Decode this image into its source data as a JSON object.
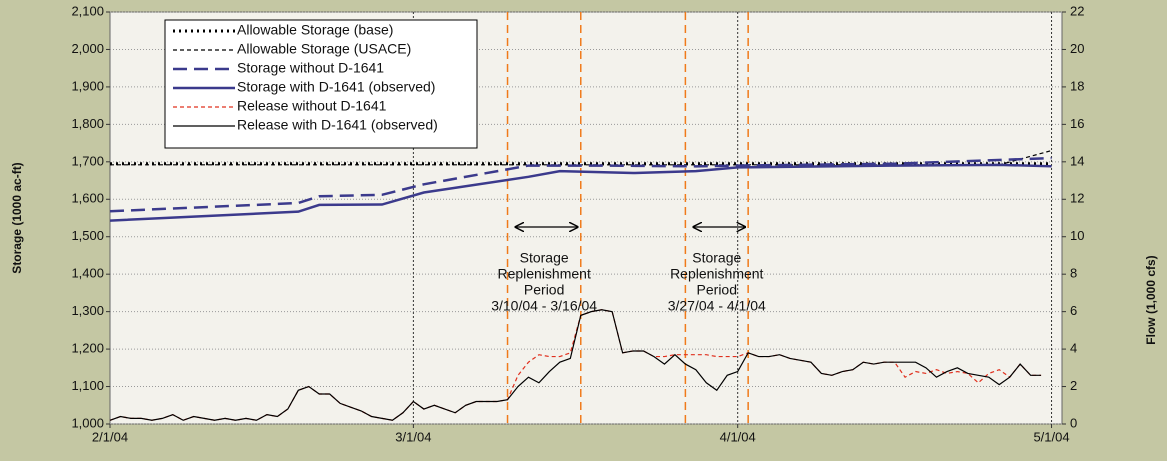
{
  "chart_data": {
    "type": "line",
    "ylabel": "Storage (1000 ac-ft)",
    "y2label": "Flow (1,000 cfs)",
    "xlim": [
      0,
      91
    ],
    "xticks": [
      {
        "value": 0,
        "label": "2/1/04"
      },
      {
        "value": 29,
        "label": "3/1/04"
      },
      {
        "value": 60,
        "label": "4/1/04"
      },
      {
        "value": 90,
        "label": "5/1/04"
      }
    ],
    "ylim": [
      1000,
      2100
    ],
    "yticks": [
      {
        "value": 1000,
        "label": "1,000"
      },
      {
        "value": 1100,
        "label": "1,100"
      },
      {
        "value": 1200,
        "label": "1,200"
      },
      {
        "value": 1300,
        "label": "1,300"
      },
      {
        "value": 1400,
        "label": "1,400"
      },
      {
        "value": 1500,
        "label": "1,500"
      },
      {
        "value": 1600,
        "label": "1,600"
      },
      {
        "value": 1700,
        "label": "1,700"
      },
      {
        "value": 1800,
        "label": "1,800"
      },
      {
        "value": 1900,
        "label": "1,900"
      },
      {
        "value": 2000,
        "label": "2,000"
      },
      {
        "value": 2100,
        "label": "2,100"
      }
    ],
    "y2lim": [
      0,
      22
    ],
    "y2ticks": [
      0,
      2,
      4,
      6,
      8,
      10,
      12,
      14,
      16,
      18,
      20,
      22
    ],
    "grid": true,
    "legend": "upper left",
    "vertical_lines": [
      38,
      45,
      55,
      61
    ],
    "annotations": [
      {
        "lines": [
          "Storage",
          "Replenishment",
          "Period",
          "3/10/04 - 3/16/04"
        ]
      },
      {
        "lines": [
          "Storage",
          "Replenishment",
          "Period",
          "3/27/04 - 4/1/04"
        ]
      }
    ],
    "x": [
      0,
      1,
      2,
      3,
      4,
      5,
      6,
      7,
      8,
      9,
      10,
      11,
      12,
      13,
      14,
      15,
      16,
      17,
      18,
      19,
      20,
      21,
      22,
      23,
      24,
      25,
      26,
      27,
      28,
      29,
      30,
      31,
      32,
      33,
      34,
      35,
      36,
      37,
      38,
      39,
      40,
      41,
      42,
      43,
      44,
      45,
      46,
      47,
      48,
      49,
      50,
      51,
      52,
      53,
      54,
      55,
      56,
      57,
      58,
      59,
      60,
      61,
      62,
      63,
      64,
      65,
      66,
      67,
      68,
      69,
      70,
      71,
      72,
      73,
      74,
      75,
      76,
      77,
      78,
      79,
      80,
      81,
      82,
      83,
      84,
      85,
      86,
      87,
      88,
      89
    ],
    "series": [
      {
        "name": "Allowable Storage (base)",
        "color": "#000000",
        "style": "dotted",
        "x": [
          0,
          90
        ],
        "values": [
          1695,
          1695
        ]
      },
      {
        "name": "Allowable Storage (USACE)",
        "color": "#000000",
        "style": "thin-dashed",
        "x": [
          0,
          85,
          90
        ],
        "values": [
          1692,
          1692,
          1730
        ]
      },
      {
        "name": "Storage without D-1641",
        "color": "#3b3a8c",
        "style": "dashed",
        "x": [
          0,
          18,
          20,
          26,
          30,
          40,
          47,
          56,
          60,
          75,
          90
        ],
        "values": [
          1568,
          1590,
          1608,
          1612,
          1640,
          1690,
          1690,
          1688,
          1690,
          1695,
          1710
        ]
      },
      {
        "name": "Storage with D-1641 (observed)",
        "color": "#3b3a8c",
        "style": "solid",
        "x": [
          0,
          18,
          20,
          26,
          30,
          40,
          43,
          50,
          56,
          60,
          75,
          85,
          90
        ],
        "values": [
          1543,
          1567,
          1585,
          1586,
          1618,
          1660,
          1675,
          1670,
          1675,
          1685,
          1690,
          1692,
          1688
        ]
      },
      {
        "name": "Release without D-1641",
        "color": "#e0301e",
        "style": "thin-dashed",
        "axis": "y2",
        "values": [
          0.2,
          0.4,
          0.3,
          0.3,
          0.2,
          0.3,
          0.5,
          0.2,
          0.4,
          0.3,
          0.2,
          0.3,
          0.2,
          0.3,
          0.2,
          0.5,
          0.4,
          0.8,
          1.8,
          2.0,
          1.6,
          1.6,
          1.1,
          0.9,
          0.7,
          0.4,
          0.3,
          0.2,
          0.6,
          1.2,
          0.8,
          1.0,
          0.8,
          0.6,
          1.0,
          1.2,
          1.2,
          1.2,
          1.3,
          2.6,
          3.3,
          3.7,
          3.6,
          3.6,
          3.8,
          5.8,
          6.0,
          6.1,
          6.0,
          3.8,
          3.9,
          3.9,
          3.6,
          3.6,
          3.7,
          3.7,
          3.7,
          3.7,
          3.6,
          3.6,
          3.6,
          3.8,
          3.6,
          3.6,
          3.7,
          3.5,
          3.4,
          3.3,
          2.7,
          2.6,
          2.8,
          2.9,
          3.3,
          3.2,
          3.3,
          3.3,
          2.5,
          2.8,
          2.7,
          2.9,
          2.7,
          2.8,
          2.7,
          2.2,
          2.7,
          2.9,
          2.5,
          3.2,
          2.6,
          2.6
        ]
      },
      {
        "name": "Release with D-1641 (observed)",
        "color": "#000000",
        "style": "solid-thin",
        "axis": "y2",
        "values": [
          0.2,
          0.4,
          0.3,
          0.3,
          0.2,
          0.3,
          0.5,
          0.2,
          0.4,
          0.3,
          0.2,
          0.3,
          0.2,
          0.3,
          0.2,
          0.5,
          0.4,
          0.8,
          1.8,
          2.0,
          1.6,
          1.6,
          1.1,
          0.9,
          0.7,
          0.4,
          0.3,
          0.2,
          0.6,
          1.2,
          0.8,
          1.0,
          0.8,
          0.6,
          1.0,
          1.2,
          1.2,
          1.2,
          1.3,
          2.0,
          2.5,
          2.2,
          2.8,
          3.3,
          3.5,
          5.8,
          6.0,
          6.1,
          6.0,
          3.8,
          3.9,
          3.9,
          3.6,
          3.2,
          3.7,
          3.2,
          2.9,
          2.2,
          1.8,
          2.6,
          2.8,
          3.8,
          3.6,
          3.6,
          3.7,
          3.5,
          3.4,
          3.3,
          2.7,
          2.6,
          2.8,
          2.9,
          3.3,
          3.2,
          3.3,
          3.3,
          3.3,
          3.3,
          3.0,
          2.5,
          2.8,
          3.0,
          2.7,
          2.6,
          2.5,
          2.1,
          2.5,
          3.2,
          2.6,
          2.6
        ]
      }
    ]
  }
}
